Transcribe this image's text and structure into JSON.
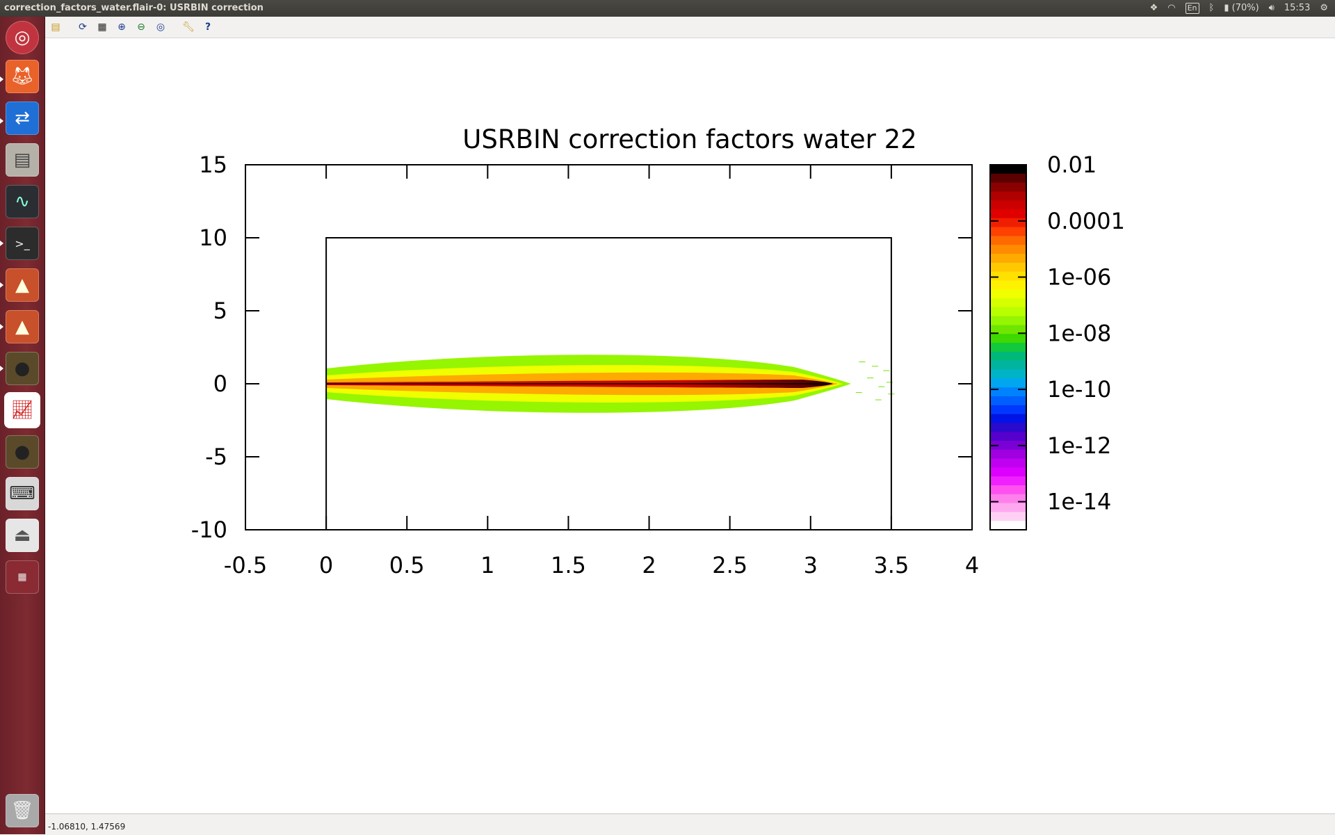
{
  "window": {
    "title": "correction_factors_water.flair-0: USRBIN correction"
  },
  "panel": {
    "keyboard": "En",
    "battery": "(70%)",
    "time": "15:53"
  },
  "launcher": {
    "items": [
      "ubuntu-dash-icon",
      "firefox-icon",
      "teamviewer-icon",
      "file-manager-icon",
      "system-monitor-icon",
      "terminal-icon",
      "matlab-icon",
      "matlab-icon-2",
      "cauldron-icon",
      "plot-app-icon",
      "cauldron-icon-2",
      "keyboard-icon",
      "usb-drive-icon",
      "workspace-switcher-icon",
      "trash-icon"
    ]
  },
  "toolbar": {
    "icons": [
      "open-icon",
      "refresh-icon",
      "grid-icon",
      "zoom-in-icon",
      "zoom-out-icon",
      "zoom-fit-icon",
      "settings-wrench-icon",
      "help-icon"
    ]
  },
  "status": {
    "coordinates": "-1.06810, 1.47569"
  },
  "chart_data": {
    "type": "heatmap",
    "title": "USRBIN correction factors water 22",
    "xlim": [
      -0.5,
      4
    ],
    "ylim": [
      -10,
      15
    ],
    "xticks": [
      "-0.5",
      "0",
      "0.5",
      "1",
      "1.5",
      "2",
      "2.5",
      "3",
      "3.5",
      "4"
    ],
    "xtick_values": [
      -0.5,
      0,
      0.5,
      1,
      1.5,
      2,
      2.5,
      3,
      3.5,
      4
    ],
    "yticks": [
      "15",
      "10",
      "5",
      "0",
      "-5",
      "-10"
    ],
    "ytick_values": [
      15,
      10,
      5,
      0,
      -5,
      -10
    ],
    "region_box": {
      "x": [
        0,
        3.5
      ],
      "y": [
        -10,
        10
      ]
    },
    "beam": {
      "x_start": 0,
      "x_peak": 3.05,
      "x_end": 3.25,
      "halo_x_end": 3.5,
      "axis_y": 0
    },
    "colorbar": {
      "scale": "log",
      "range": [
        1e-15,
        0.01
      ],
      "labels": [
        "0.01",
        "0.0001",
        "1e-06",
        "1e-08",
        "1e-10",
        "1e-12",
        "1e-14"
      ],
      "colors": [
        "#000000",
        "#5a0000",
        "#8b0000",
        "#b00000",
        "#cc0000",
        "#e00000",
        "#f01e00",
        "#ff4000",
        "#ff6a00",
        "#ff8c00",
        "#ffaa00",
        "#ffc800",
        "#ffe000",
        "#fff200",
        "#f0ff00",
        "#d6ff00",
        "#b8ff00",
        "#96f500",
        "#70e600",
        "#3fd800",
        "#12c83c",
        "#00b878",
        "#00b4a0",
        "#00b4c8",
        "#00a6f0",
        "#0082ff",
        "#0060ff",
        "#0038ff",
        "#0014e6",
        "#2a0acc",
        "#5500cc",
        "#7a00d6",
        "#a000e0",
        "#c000f0",
        "#dc00ff",
        "#f020ff",
        "#ff50f0",
        "#ff80ec",
        "#ffa8f0",
        "#ffd0f4",
        "#ffffff"
      ]
    }
  }
}
